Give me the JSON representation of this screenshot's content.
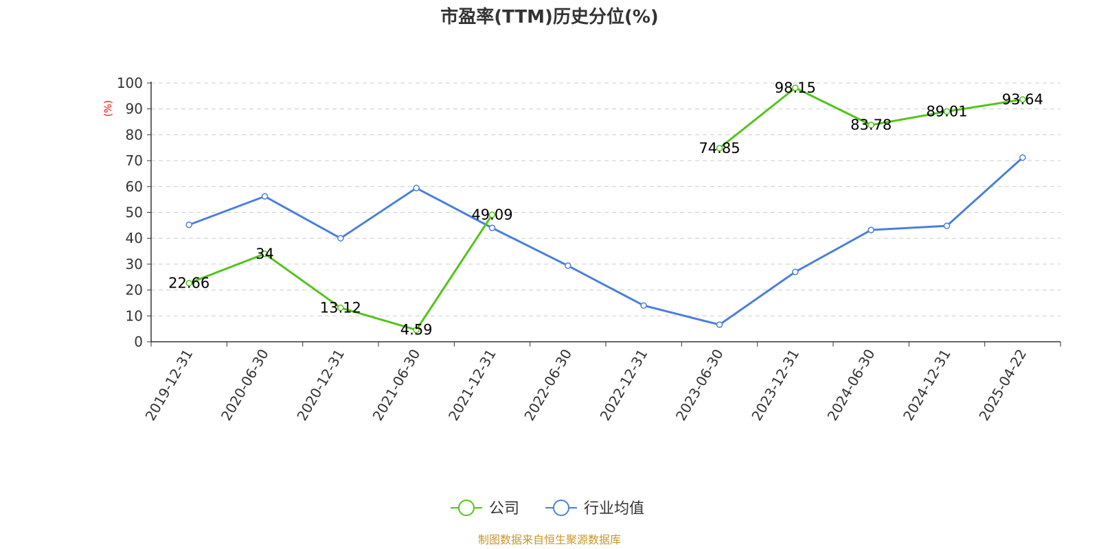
{
  "chart_data": {
    "type": "line",
    "title": "市盈率(TTM)历史分位(%)",
    "ylabel": "(%)",
    "ylim": [
      0,
      100
    ],
    "yticks": [
      0,
      10,
      20,
      30,
      40,
      50,
      60,
      70,
      80,
      90,
      100
    ],
    "grid": true,
    "legend_position": "bottom",
    "categories": [
      "2019-12-31",
      "2020-06-30",
      "2020-12-31",
      "2021-06-30",
      "2021-12-31",
      "2022-06-30",
      "2022-12-31",
      "2023-06-30",
      "2023-12-31",
      "2024-06-30",
      "2024-12-31",
      "2025-04-22"
    ],
    "series": [
      {
        "name": "公司",
        "color": "#52c41a",
        "show_labels": true,
        "values": [
          22.66,
          34,
          13.12,
          4.59,
          49.09,
          null,
          null,
          74.85,
          98.15,
          83.78,
          89.01,
          93.64
        ]
      },
      {
        "name": "行业均值",
        "color": "#4a7fdb",
        "show_labels": false,
        "values": [
          45.2,
          56.2,
          40.0,
          59.4,
          44.0,
          29.4,
          14.0,
          6.6,
          27.0,
          43.2,
          44.8,
          71.2
        ]
      }
    ]
  },
  "source_text": "制图数据来自恒生聚源数据库"
}
